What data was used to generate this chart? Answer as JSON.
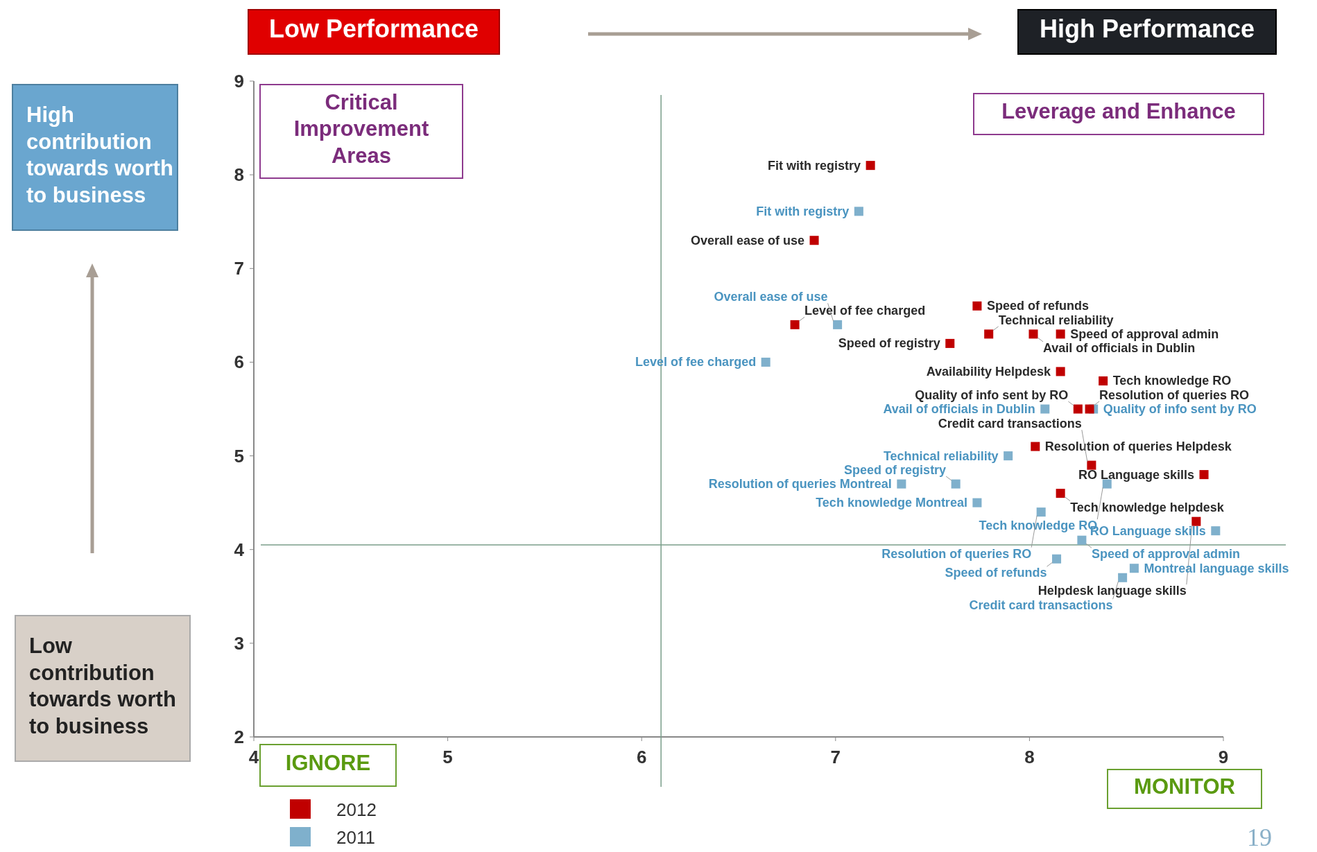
{
  "chart_data": {
    "type": "scatter",
    "xlim": [
      4,
      9
    ],
    "xticks": [
      4,
      5,
      6,
      7,
      8,
      9
    ],
    "ylim": [
      2,
      9
    ],
    "yticks": [
      2,
      3,
      4,
      5,
      6,
      7,
      8,
      9
    ],
    "grid": false,
    "legend": "bottom left",
    "marker": "square",
    "series": [
      {
        "name": "2012",
        "color": "#c00000",
        "x": [
          7.18,
          6.89,
          6.79,
          7.73,
          7.59,
          7.79,
          8.02,
          8.16,
          8.16,
          8.38,
          8.25,
          8.31,
          8.03,
          8.32,
          8.9,
          8.16,
          8.86
        ],
        "values": [
          8.1,
          7.3,
          6.4,
          6.6,
          6.2,
          6.3,
          6.3,
          6.3,
          5.9,
          5.8,
          5.5,
          5.5,
          5.1,
          4.9,
          4.8,
          4.6,
          4.3
        ]
      },
      {
        "name": "2011",
        "color": "#7fb0cc",
        "x": [
          7.12,
          7.01,
          6.64,
          8.08,
          8.33,
          7.89,
          7.34,
          7.62,
          8.4,
          7.73,
          8.06,
          8.96,
          8.27,
          8.14,
          8.54,
          8.48
        ],
        "values": [
          7.61,
          6.4,
          6.0,
          5.5,
          5.5,
          5.0,
          4.7,
          4.7,
          4.7,
          4.5,
          4.4,
          4.2,
          4.1,
          3.9,
          3.8,
          3.7
        ]
      }
    ],
    "ref_lines": [
      {
        "axis": "x",
        "value": 6.1,
        "color": "#7a9e8a"
      },
      {
        "axis": "y",
        "value": 4.05,
        "color": "#7a9e8a"
      }
    ],
    "annotations": [
      "Low Performance",
      "High Performance",
      "High contribution towards worth to business",
      "Low contribution towards worth to business",
      "Critical Improvement Areas",
      "Leverage and Enhance",
      "IGNORE",
      "MONITOR",
      "19",
      {
        "text": "Fit with registry",
        "x": 7.18,
        "y": 8.1
      },
      {
        "text": "Overall ease of use",
        "x": 6.89,
        "y": 7.3
      },
      {
        "text": "Level of fee charged",
        "x": 6.79,
        "y": 6.4
      },
      {
        "text": "Speed of refunds",
        "x": 7.73,
        "y": 6.6
      },
      {
        "text": "Speed of registry",
        "x": 7.59,
        "y": 6.2
      },
      {
        "text": "Technical reliability",
        "x": 7.79,
        "y": 6.3
      },
      {
        "text": "Avail of officials in Dublin",
        "x": 8.02,
        "y": 6.3
      },
      {
        "text": "Speed of approval admin",
        "x": 8.16,
        "y": 6.3
      },
      {
        "text": "Availability Helpdesk",
        "x": 8.16,
        "y": 5.9
      },
      {
        "text": "Tech knowledge RO",
        "x": 8.38,
        "y": 5.8
      },
      {
        "text": "Quality of info sent by RO",
        "x": 8.25,
        "y": 5.5
      },
      {
        "text": "Resolution of queries RO",
        "x": 8.31,
        "y": 5.5
      },
      {
        "text": "Resolution of queries Helpdesk",
        "x": 8.03,
        "y": 5.1
      },
      {
        "text": "Credit card transactions",
        "x": 8.32,
        "y": 4.9
      },
      {
        "text": "RO Language skills",
        "x": 8.9,
        "y": 4.8
      },
      {
        "text": "Tech knowledge helpdesk",
        "x": 8.16,
        "y": 4.6
      },
      {
        "text": "Helpdesk language skills",
        "x": 8.86,
        "y": 4.3
      },
      {
        "text": "Fit with registry",
        "x": 7.12,
        "y": 7.61
      },
      {
        "text": "Overall ease of use",
        "x": 7.01,
        "y": 6.4
      },
      {
        "text": "Level of fee charged",
        "x": 6.64,
        "y": 6.0
      },
      {
        "text": "Avail of officials in Dublin",
        "x": 8.08,
        "y": 5.5
      },
      {
        "text": "Quality of info sent by RO",
        "x": 8.33,
        "y": 5.5
      },
      {
        "text": "Technical reliability",
        "x": 7.89,
        "y": 5.0
      },
      {
        "text": "Resolution of queries Montreal",
        "x": 7.34,
        "y": 4.7
      },
      {
        "text": "Speed of registry",
        "x": 7.62,
        "y": 4.7
      },
      {
        "text": "Tech knowledge RO",
        "x": 8.4,
        "y": 4.7
      },
      {
        "text": "Tech knowledge Montreal",
        "x": 7.73,
        "y": 4.5
      },
      {
        "text": "Resolution of queries RO",
        "x": 8.06,
        "y": 4.4
      },
      {
        "text": "RO Language skills",
        "x": 8.96,
        "y": 4.2
      },
      {
        "text": "Speed of approval admin",
        "x": 8.27,
        "y": 4.1
      },
      {
        "text": "Speed of refunds",
        "x": 8.14,
        "y": 3.9
      },
      {
        "text": "Montreal language skills",
        "x": 8.54,
        "y": 3.8
      },
      {
        "text": "Credit card transactions",
        "x": 8.48,
        "y": 3.7
      }
    ]
  }
}
